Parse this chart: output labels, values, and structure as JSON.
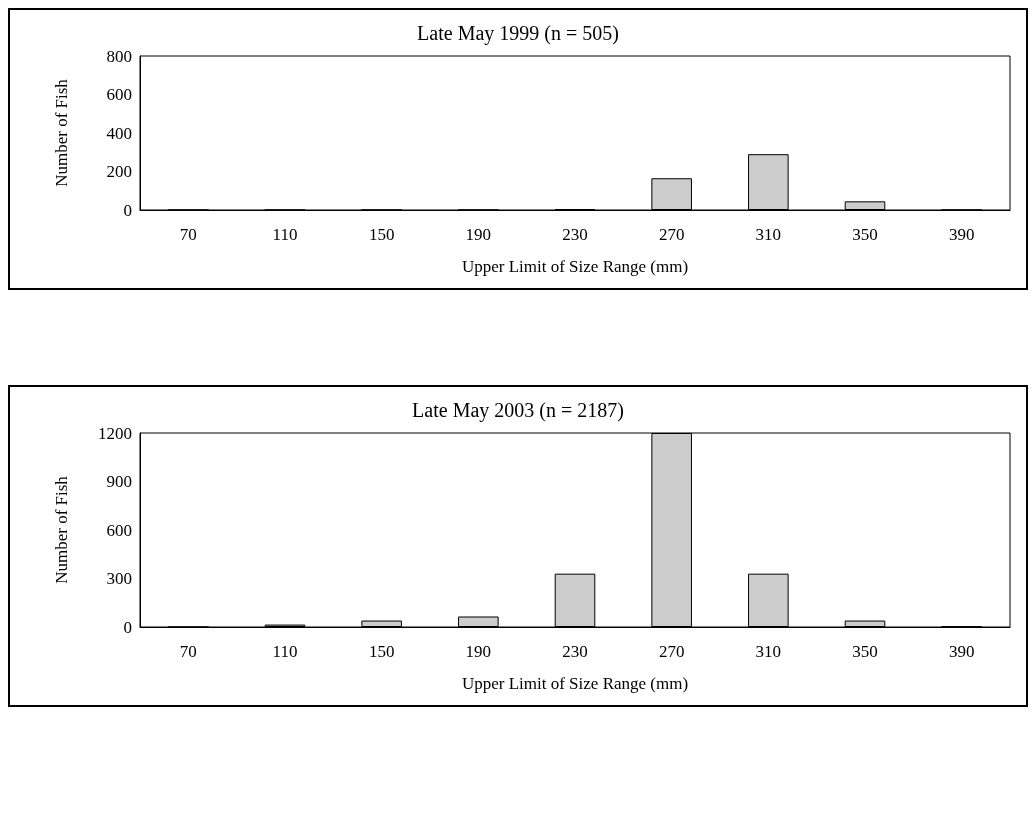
{
  "chart_data": [
    {
      "type": "bar",
      "title": "Late May 1999 (n = 505)",
      "xlabel": "Upper Limit of Size Range (mm)",
      "ylabel": "Number of Fish",
      "categories": [
        "70",
        "110",
        "150",
        "190",
        "230",
        "270",
        "310",
        "350",
        "390"
      ],
      "values": [
        0,
        0,
        0,
        0,
        5,
        165,
        290,
        45,
        0
      ],
      "color": "#cccccc",
      "ylim": [
        0,
        800
      ],
      "yticks": [
        0,
        200,
        400,
        600,
        800
      ],
      "grid": false
    },
    {
      "type": "bar",
      "title": "Late May 2003 (n = 2187)",
      "xlabel": "Upper Limit of Size Range (mm)",
      "ylabel": "Number of Fish",
      "categories": [
        "70",
        "110",
        "150",
        "190",
        "230",
        "270",
        "310",
        "350",
        "390"
      ],
      "values": [
        0,
        15,
        40,
        65,
        330,
        1200,
        330,
        40,
        3
      ],
      "color": "#cccccc",
      "ylim": [
        0,
        1200
      ],
      "yticks": [
        0,
        300,
        600,
        900,
        1200
      ],
      "grid": false
    }
  ]
}
